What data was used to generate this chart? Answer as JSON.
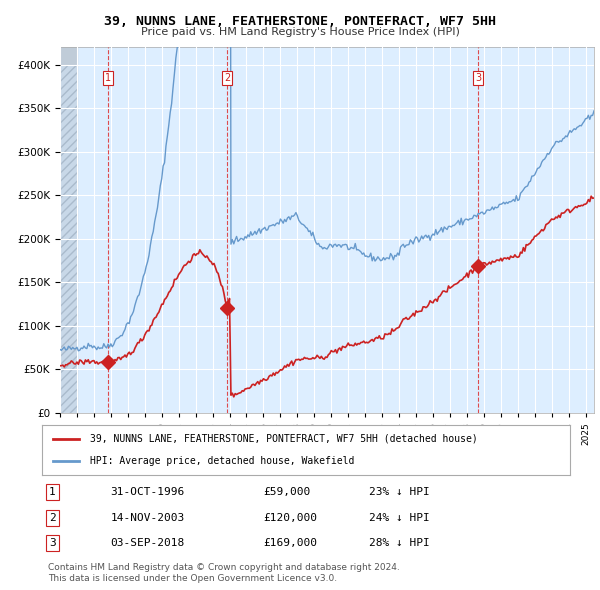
{
  "title": "39, NUNNS LANE, FEATHERSTONE, PONTEFRACT, WF7 5HH",
  "subtitle": "Price paid vs. HM Land Registry's House Price Index (HPI)",
  "hpi_color": "#6699cc",
  "price_color": "#cc2222",
  "bg_color": "#ddeeff",
  "hatched_bg_color": "#bbccdd",
  "legend_line1": "39, NUNNS LANE, FEATHERSTONE, PONTEFRACT, WF7 5HH (detached house)",
  "legend_line2": "HPI: Average price, detached house, Wakefield",
  "transactions": [
    {
      "num": 1,
      "date": "31-OCT-1996",
      "price": 59000,
      "year": 1996.83,
      "hpi_pct": "23%"
    },
    {
      "num": 2,
      "date": "14-NOV-2003",
      "price": 120000,
      "year": 2003.87,
      "hpi_pct": "24%"
    },
    {
      "num": 3,
      "date": "03-SEP-2018",
      "price": 169000,
      "year": 2018.67,
      "hpi_pct": "28%"
    }
  ],
  "copyright": "Contains HM Land Registry data © Crown copyright and database right 2024.\nThis data is licensed under the Open Government Licence v3.0.",
  "ylim": [
    0,
    400000
  ],
  "xlim_start": 1994.0,
  "xlim_end": 2025.5
}
